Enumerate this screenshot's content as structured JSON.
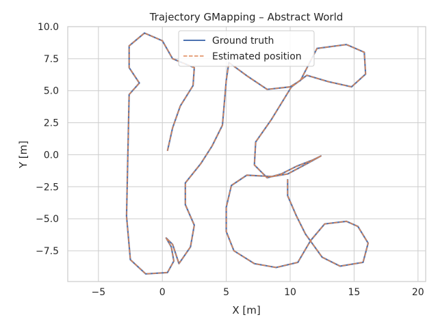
{
  "chart_data": {
    "type": "line",
    "title": "Trajectory GMapping – Abstract World",
    "xlabel": "X [m]",
    "ylabel": "Y [m]",
    "xlim": [
      -7.4,
      20.6
    ],
    "ylim": [
      -9.9,
      10.0
    ],
    "xticks": [
      -5,
      0,
      5,
      10,
      15,
      20
    ],
    "xtick_labels": [
      "−5",
      "0",
      "5",
      "10",
      "15",
      "20"
    ],
    "yticks": [
      -7.5,
      -5.0,
      -2.5,
      0.0,
      2.5,
      5.0,
      7.5,
      10.0
    ],
    "ytick_labels": [
      "−7.5",
      "−5.0",
      "−2.5",
      "0.0",
      "2.5",
      "5.0",
      "7.5",
      "10.0"
    ],
    "grid": true,
    "legend_position": "top-center",
    "series": [
      {
        "name": "Ground truth",
        "color": "#4c72b0",
        "style": "solid",
        "points": [
          [
            0.4,
            0.3
          ],
          [
            0.8,
            2.1
          ],
          [
            1.4,
            3.8
          ],
          [
            2.4,
            5.4
          ],
          [
            2.5,
            6.8
          ],
          [
            0.8,
            7.5
          ],
          [
            0.0,
            8.9
          ],
          [
            -1.4,
            9.5
          ],
          [
            -2.6,
            8.5
          ],
          [
            -2.6,
            6.8
          ],
          [
            -1.8,
            5.6
          ],
          [
            -2.6,
            4.7
          ],
          [
            -2.8,
            -4.8
          ],
          [
            -2.5,
            -8.2
          ],
          [
            -1.3,
            -9.3
          ],
          [
            0.4,
            -9.2
          ],
          [
            0.9,
            -8.3
          ],
          [
            0.7,
            -7.2
          ],
          [
            0.3,
            -6.5
          ],
          [
            0.8,
            -7.0
          ],
          [
            1.3,
            -8.5
          ],
          [
            2.2,
            -7.2
          ],
          [
            2.5,
            -5.5
          ],
          [
            1.8,
            -3.9
          ],
          [
            1.8,
            -2.2
          ],
          [
            3.0,
            -0.7
          ],
          [
            3.9,
            0.7
          ],
          [
            4.7,
            2.3
          ],
          [
            5.0,
            5.8
          ],
          [
            5.2,
            7.2
          ],
          [
            6.7,
            6.1
          ],
          [
            8.2,
            5.1
          ],
          [
            10.0,
            5.3
          ],
          [
            10.8,
            5.8
          ],
          [
            12.1,
            8.3
          ],
          [
            14.4,
            8.6
          ],
          [
            15.8,
            8.0
          ],
          [
            15.9,
            6.3
          ],
          [
            14.8,
            5.3
          ],
          [
            13.0,
            5.7
          ],
          [
            11.3,
            6.2
          ],
          [
            10.1,
            5.3
          ],
          [
            8.5,
            2.7
          ],
          [
            7.3,
            1.0
          ],
          [
            7.2,
            -0.8
          ],
          [
            8.2,
            -1.8
          ],
          [
            9.3,
            -1.5
          ],
          [
            10.5,
            -0.9
          ],
          [
            11.8,
            -0.4
          ],
          [
            12.4,
            -0.1
          ],
          [
            11.3,
            -0.7
          ],
          [
            9.8,
            -1.5
          ],
          [
            8.6,
            -1.7
          ],
          [
            6.6,
            -1.6
          ],
          [
            5.4,
            -2.4
          ],
          [
            5.0,
            -4.1
          ],
          [
            5.0,
            -6.0
          ],
          [
            5.6,
            -7.5
          ],
          [
            7.2,
            -8.5
          ],
          [
            8.9,
            -8.8
          ],
          [
            10.6,
            -8.4
          ],
          [
            11.6,
            -6.7
          ],
          [
            12.7,
            -5.4
          ],
          [
            14.4,
            -5.2
          ],
          [
            15.3,
            -5.6
          ],
          [
            16.1,
            -6.9
          ],
          [
            15.7,
            -8.4
          ],
          [
            13.9,
            -8.7
          ],
          [
            12.5,
            -8.0
          ],
          [
            11.2,
            -6.2
          ],
          [
            10.5,
            -4.8
          ],
          [
            9.8,
            -3.2
          ],
          [
            9.8,
            -1.9
          ]
        ]
      },
      {
        "name": "Estimated position",
        "color": "#dd8452",
        "style": "dashed",
        "points": [
          [
            0.4,
            0.3
          ],
          [
            0.8,
            2.1
          ],
          [
            1.4,
            3.8
          ],
          [
            2.4,
            5.4
          ],
          [
            2.5,
            6.8
          ],
          [
            0.8,
            7.5
          ],
          [
            0.0,
            8.9
          ],
          [
            -1.4,
            9.5
          ],
          [
            -2.6,
            8.5
          ],
          [
            -2.6,
            6.8
          ],
          [
            -1.8,
            5.6
          ],
          [
            -2.6,
            4.7
          ],
          [
            -2.8,
            -4.8
          ],
          [
            -2.5,
            -8.2
          ],
          [
            -1.3,
            -9.3
          ],
          [
            0.4,
            -9.2
          ],
          [
            0.9,
            -8.3
          ],
          [
            0.7,
            -7.2
          ],
          [
            0.3,
            -6.5
          ],
          [
            0.8,
            -7.0
          ],
          [
            1.3,
            -8.5
          ],
          [
            2.2,
            -7.2
          ],
          [
            2.5,
            -5.5
          ],
          [
            1.8,
            -3.9
          ],
          [
            1.8,
            -2.2
          ],
          [
            3.0,
            -0.7
          ],
          [
            3.9,
            0.7
          ],
          [
            4.7,
            2.3
          ],
          [
            5.0,
            5.8
          ],
          [
            5.2,
            7.2
          ],
          [
            6.7,
            6.1
          ],
          [
            8.2,
            5.1
          ],
          [
            10.0,
            5.3
          ],
          [
            10.8,
            5.8
          ],
          [
            12.1,
            8.3
          ],
          [
            14.4,
            8.6
          ],
          [
            15.8,
            8.0
          ],
          [
            15.9,
            6.3
          ],
          [
            14.8,
            5.3
          ],
          [
            13.0,
            5.7
          ],
          [
            11.3,
            6.2
          ],
          [
            10.1,
            5.3
          ],
          [
            8.5,
            2.7
          ],
          [
            7.3,
            1.0
          ],
          [
            7.2,
            -0.8
          ],
          [
            8.2,
            -1.8
          ],
          [
            9.3,
            -1.5
          ],
          [
            10.5,
            -0.9
          ],
          [
            11.8,
            -0.4
          ],
          [
            12.4,
            -0.1
          ],
          [
            11.3,
            -0.7
          ],
          [
            9.8,
            -1.5
          ],
          [
            8.6,
            -1.7
          ],
          [
            6.6,
            -1.6
          ],
          [
            5.4,
            -2.4
          ],
          [
            5.0,
            -4.1
          ],
          [
            5.0,
            -6.0
          ],
          [
            5.6,
            -7.5
          ],
          [
            7.2,
            -8.5
          ],
          [
            8.9,
            -8.8
          ],
          [
            10.6,
            -8.4
          ],
          [
            11.6,
            -6.7
          ],
          [
            12.7,
            -5.4
          ],
          [
            14.4,
            -5.2
          ],
          [
            15.3,
            -5.6
          ],
          [
            16.1,
            -6.9
          ],
          [
            15.7,
            -8.4
          ],
          [
            13.9,
            -8.7
          ],
          [
            12.5,
            -8.0
          ],
          [
            11.2,
            -6.2
          ],
          [
            10.5,
            -4.8
          ],
          [
            9.8,
            -3.2
          ],
          [
            9.8,
            -1.9
          ]
        ]
      }
    ]
  }
}
